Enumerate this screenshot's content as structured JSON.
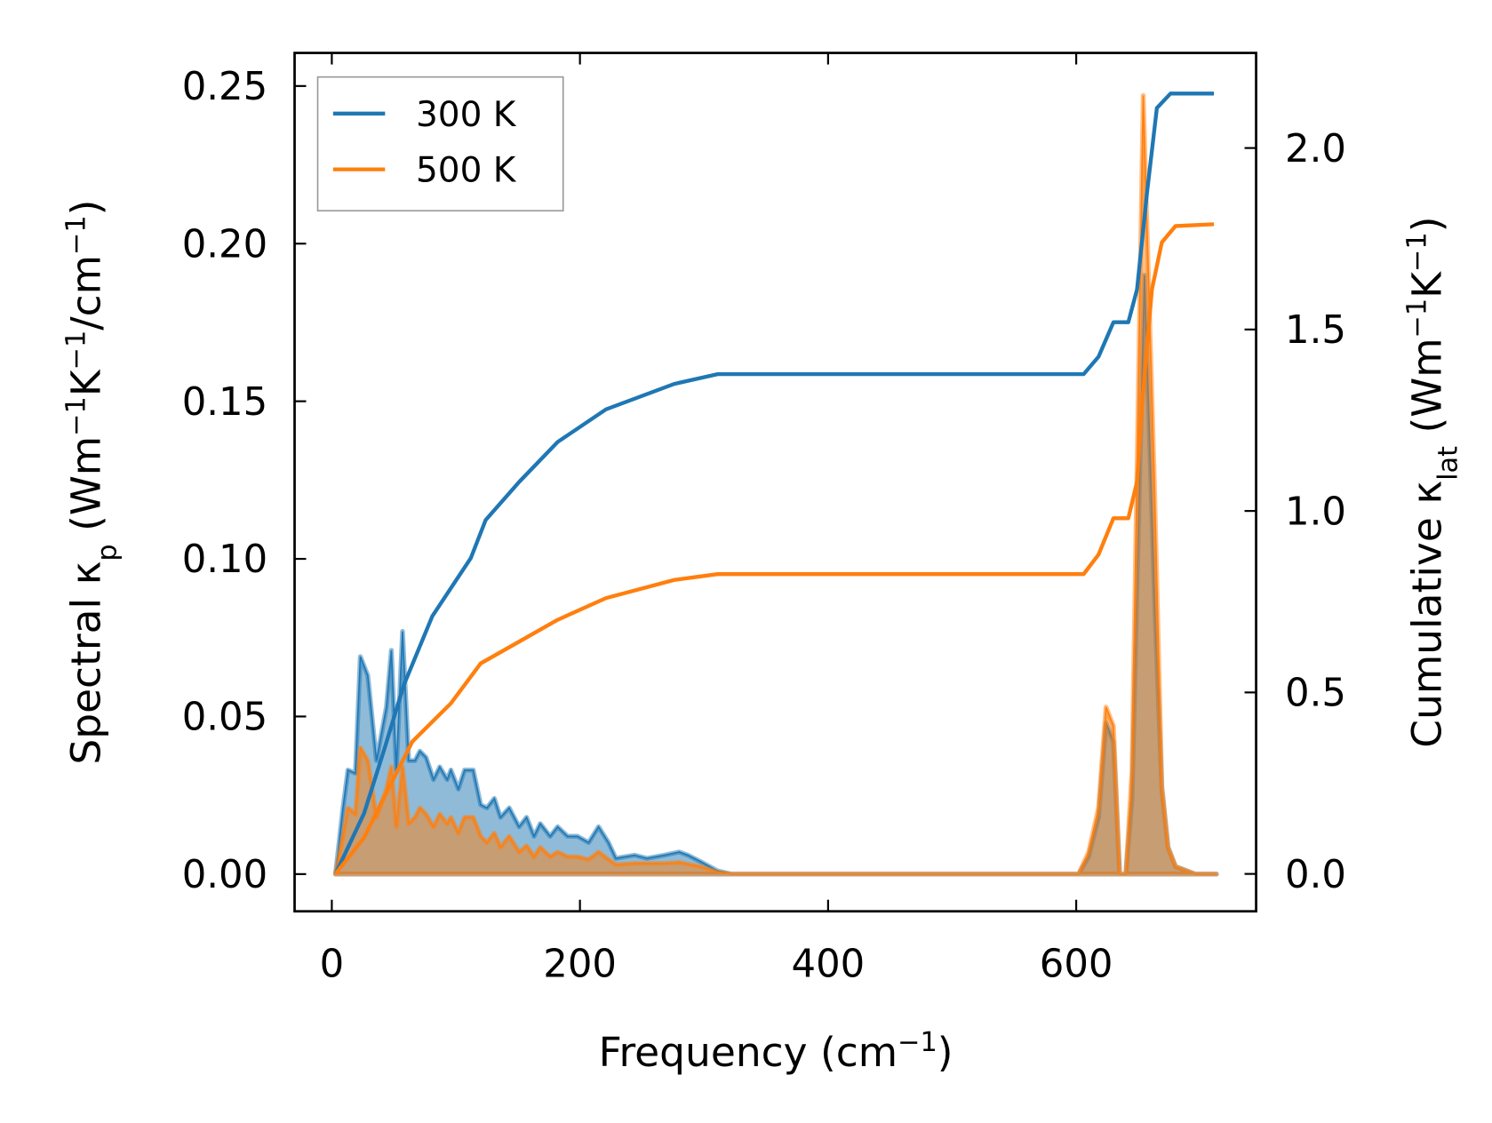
{
  "chart_data": {
    "type": "line",
    "title": "",
    "xlabel_parts": [
      {
        "t": "Frequency (cm"
      },
      {
        "t": "−1",
        "sup": true
      },
      {
        "t": ")"
      }
    ],
    "ylabel_parts": [
      {
        "t": "Spectral κ"
      },
      {
        "t": "p",
        "sub": true
      },
      {
        "t": " (Wm"
      },
      {
        "t": "−1",
        "sup": true
      },
      {
        "t": "K"
      },
      {
        "t": "−1",
        "sup": true
      },
      {
        "t": "/cm"
      },
      {
        "t": "−1",
        "sup": true
      },
      {
        "t": ")"
      }
    ],
    "y2label_parts": [
      {
        "t": "Cumulative κ"
      },
      {
        "t": "lat",
        "sub": true
      },
      {
        "t": " (Wm"
      },
      {
        "t": "−1",
        "sup": true
      },
      {
        "t": "K"
      },
      {
        "t": "−1",
        "sup": true
      },
      {
        "t": ")"
      }
    ],
    "xlim": [
      -30,
      745
    ],
    "ylim": [
      -0.0118,
      0.2605
    ],
    "y2lim": [
      -0.103,
      2.262
    ],
    "xticks": [
      0,
      200,
      400,
      600
    ],
    "xtick_labels": [
      "0",
      "200",
      "400",
      "600"
    ],
    "yticks": [
      0,
      0.05,
      0.1,
      0.15,
      0.2,
      0.25
    ],
    "ytick_labels": [
      "0.00",
      "0.05",
      "0.10",
      "0.15",
      "0.20",
      "0.25"
    ],
    "y2ticks": [
      0,
      0.5,
      1.0,
      1.5,
      2.0
    ],
    "y2tick_labels": [
      "0.0",
      "0.5",
      "1.0",
      "1.5",
      "2.0"
    ],
    "grid": false,
    "legend": {
      "placement": "top-left",
      "entries": [
        "300 K",
        "500 K"
      ]
    },
    "colors": {
      "300 K": "#1f77b4",
      "500 K": "#ff7f0e"
    },
    "series": [
      {
        "name": "300 K",
        "kind": "spectral",
        "axis": "left",
        "x": [
          3,
          9,
          13,
          19,
          23,
          29,
          36,
          44,
          48,
          52,
          57,
          62,
          67,
          71,
          76,
          82,
          87,
          93,
          96,
          102,
          107,
          114,
          120,
          125,
          131,
          136,
          143,
          151,
          157,
          163,
          168,
          176,
          182,
          190,
          198,
          207,
          215,
          223,
          229,
          244,
          254,
          268,
          280,
          287,
          297,
          311,
          322,
          602,
          610,
          618,
          624,
          630,
          635,
          640,
          645,
          655,
          663,
          669,
          674,
          680,
          696,
          713
        ],
        "y": [
          0,
          0.021,
          0.033,
          0.032,
          0.069,
          0.063,
          0.036,
          0.053,
          0.071,
          0.033,
          0.077,
          0.036,
          0.036,
          0.039,
          0.037,
          0.03,
          0.034,
          0.03,
          0.033,
          0.027,
          0.033,
          0.033,
          0.022,
          0.021,
          0.024,
          0.018,
          0.021,
          0.015,
          0.018,
          0.012,
          0.016,
          0.012,
          0.015,
          0.012,
          0.012,
          0.01,
          0.015,
          0.01,
          0.005,
          0.006,
          0.005,
          0.006,
          0.007,
          0.006,
          0.004,
          0.001,
          0,
          0,
          0.0055,
          0.018,
          0.048,
          0.042,
          0,
          0,
          0.024,
          0.19,
          0.088,
          0.027,
          0.0085,
          0.0024,
          0,
          0
        ]
      },
      {
        "name": "500 K",
        "kind": "spectral",
        "axis": "left",
        "x": [
          3,
          9,
          13,
          19,
          23,
          29,
          36,
          44,
          48,
          52,
          57,
          62,
          67,
          71,
          76,
          82,
          87,
          93,
          96,
          102,
          107,
          114,
          120,
          125,
          131,
          136,
          143,
          151,
          157,
          163,
          168,
          176,
          182,
          190,
          198,
          207,
          215,
          223,
          229,
          244,
          268,
          280,
          297,
          311,
          322,
          602,
          610,
          618,
          624,
          630,
          635,
          640,
          645,
          654,
          663,
          669,
          674,
          680,
          696,
          713
        ],
        "y": [
          0,
          0.012,
          0.021,
          0.019,
          0.04,
          0.036,
          0.018,
          0.027,
          0.034,
          0.015,
          0.034,
          0.016,
          0.018,
          0.021,
          0.019,
          0.015,
          0.019,
          0.016,
          0.018,
          0.013,
          0.018,
          0.018,
          0.012,
          0.01,
          0.013,
          0.0085,
          0.012,
          0.007,
          0.009,
          0.0055,
          0.0085,
          0.0055,
          0.007,
          0.0055,
          0.0055,
          0.0046,
          0.007,
          0.0046,
          0.003,
          0.0034,
          0.0034,
          0.0037,
          0.0024,
          0.0006,
          0,
          0,
          0.007,
          0.021,
          0.053,
          0.047,
          0,
          0,
          0.033,
          0.247,
          0.124,
          0.028,
          0.0085,
          0.0024,
          0,
          0
        ]
      },
      {
        "name": "300 K",
        "kind": "cumulative",
        "axis": "right",
        "x": [
          3,
          26,
          42,
          58,
          81,
          112,
          124,
          151,
          182,
          221,
          276,
          311,
          606,
          618,
          630,
          642,
          649,
          657,
          665,
          676,
          711
        ],
        "y": [
          0,
          0.167,
          0.34,
          0.52,
          0.71,
          0.87,
          0.975,
          1.08,
          1.19,
          1.28,
          1.35,
          1.377,
          1.377,
          1.425,
          1.52,
          1.52,
          1.61,
          1.875,
          2.11,
          2.15,
          2.15
        ]
      },
      {
        "name": "500 K",
        "kind": "cumulative",
        "axis": "right",
        "x": [
          3,
          26,
          42,
          65,
          96,
          120,
          151,
          182,
          221,
          276,
          311,
          606,
          618,
          630,
          642,
          649,
          653,
          661,
          669,
          680,
          711
        ],
        "y": [
          0,
          0.1,
          0.21,
          0.365,
          0.47,
          0.58,
          0.64,
          0.7,
          0.76,
          0.81,
          0.826,
          0.826,
          0.88,
          0.98,
          0.98,
          1.08,
          1.29,
          1.61,
          1.74,
          1.785,
          1.79
        ]
      }
    ]
  }
}
